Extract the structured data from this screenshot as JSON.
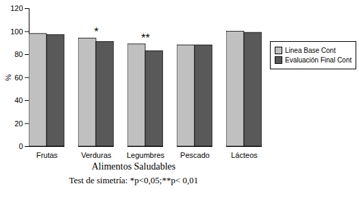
{
  "chart_data": {
    "type": "bar",
    "categories": [
      "Frutas",
      "Verduras",
      "Legumbres",
      "Pescado",
      "Lácteos"
    ],
    "series": [
      {
        "name": "Linea Base Cont",
        "color": "#c0c0c0",
        "values": [
          98,
          94,
          89,
          88,
          100
        ]
      },
      {
        "name": "Evaluación Final Cont",
        "color": "#595959",
        "values": [
          97,
          91,
          83,
          88,
          99
        ]
      }
    ],
    "x_label": "Alimentos Saludables",
    "y_label": "%",
    "caption": "Test de simetría: *p<0,05;**p< 0,01",
    "annotations": [
      {
        "category": "Verduras",
        "text": "*"
      },
      {
        "category": "Legumbres",
        "text": "**"
      }
    ],
    "ylim": [
      0,
      120
    ],
    "yticks": [
      0,
      20,
      40,
      60,
      80,
      100,
      120
    ],
    "legend": "right",
    "grid": false
  }
}
